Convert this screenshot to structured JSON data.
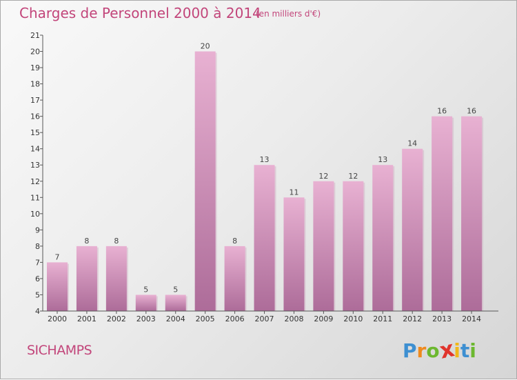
{
  "header": {
    "title": "Charges de Personnel 2000 à 2014",
    "subtitle": "(en milliers d'€)"
  },
  "footer": {
    "commune": "SICHAMPS",
    "logo": {
      "letters": [
        "P",
        "r",
        "o",
        "x",
        "i",
        "t",
        "i"
      ],
      "colors": [
        "#3d8fd1",
        "#ef8a1e",
        "#6cb82f",
        "#e0342c",
        "#f0b81a",
        "#3d8fd1",
        "#6cb82f"
      ]
    }
  },
  "colors": {
    "bar_light": "#e8b1d2",
    "bar_dark": "#ad6c99",
    "bar_shadow": "#c99bb8",
    "title": "#c2457a",
    "axis": "#555555"
  },
  "chart_data": {
    "type": "bar",
    "title": "Charges de Personnel 2000 à 2014",
    "subtitle": "(en milliers d'€)",
    "xlabel": "",
    "ylabel": "",
    "categories": [
      "2000",
      "2001",
      "2002",
      "2003",
      "2004",
      "2005",
      "2006",
      "2007",
      "2008",
      "2009",
      "2010",
      "2011",
      "2012",
      "2013",
      "2014"
    ],
    "values": [
      7,
      8,
      8,
      5,
      5,
      20,
      8,
      13,
      11,
      12,
      12,
      13,
      14,
      16,
      16
    ],
    "ylim": [
      4,
      21
    ],
    "yticks": [
      4,
      5,
      6,
      7,
      8,
      9,
      10,
      11,
      12,
      13,
      14,
      15,
      16,
      17,
      18,
      19,
      20,
      21
    ],
    "grid": false,
    "legend": "none"
  }
}
